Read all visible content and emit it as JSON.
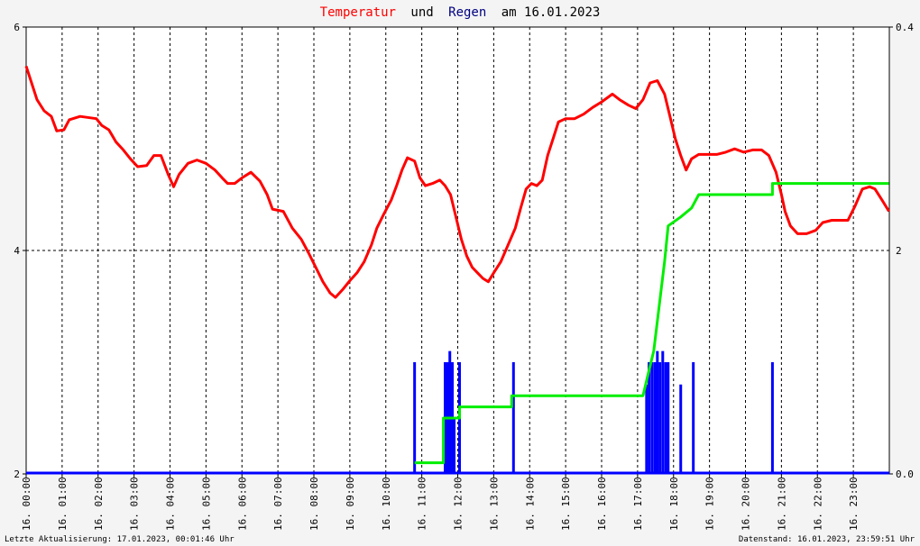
{
  "title": {
    "part1": "Temperatur",
    "part2": "und",
    "part3": "Regen",
    "part4": "am 16.01.2023"
  },
  "colors": {
    "temperature": "#ff0000",
    "rain": "#0000ff",
    "rain_total": "#00ee00",
    "background": "#f4f4f4",
    "plot_background": "#ffffff"
  },
  "footer": {
    "left": "Letzte Aktualisierung: 17.01.2023, 00:01:46 Uhr",
    "right": "Datenstand: 16.01.2023, 23:59:51 Uhr"
  },
  "chart_data": {
    "type": "line",
    "x_unit": "hour",
    "xlim": [
      0,
      24
    ],
    "grid": true,
    "x_ticks": [
      {
        "x": 0,
        "label": "16. 00:00"
      },
      {
        "x": 1,
        "label": "16. 01:00"
      },
      {
        "x": 2,
        "label": "16. 02:00"
      },
      {
        "x": 3,
        "label": "16. 03:00"
      },
      {
        "x": 4,
        "label": "16. 04:00"
      },
      {
        "x": 5,
        "label": "16. 05:00"
      },
      {
        "x": 6,
        "label": "16. 06:00"
      },
      {
        "x": 7,
        "label": "16. 07:00"
      },
      {
        "x": 8,
        "label": "16. 08:00"
      },
      {
        "x": 9,
        "label": "16. 09:00"
      },
      {
        "x": 10,
        "label": "16. 10:00"
      },
      {
        "x": 11,
        "label": "16. 11:00"
      },
      {
        "x": 12,
        "label": "16. 12:00"
      },
      {
        "x": 13,
        "label": "16. 13:00"
      },
      {
        "x": 14,
        "label": "16. 14:00"
      },
      {
        "x": 15,
        "label": "16. 15:00"
      },
      {
        "x": 16,
        "label": "16. 16:00"
      },
      {
        "x": 17,
        "label": "16. 17:00"
      },
      {
        "x": 18,
        "label": "16. 18:00"
      },
      {
        "x": 19,
        "label": "16. 19:00"
      },
      {
        "x": 20,
        "label": "16. 20:00"
      },
      {
        "x": 21,
        "label": "16. 21:00"
      },
      {
        "x": 22,
        "label": "16. 22:00"
      },
      {
        "x": 23,
        "label": "16. 23:00"
      }
    ],
    "y_left": {
      "ylim": [
        2,
        6
      ],
      "ticks": [
        {
          "v": 2,
          "label": "2"
        },
        {
          "v": 4,
          "label": "4"
        },
        {
          "v": 6,
          "label": "6"
        }
      ]
    },
    "y_right_outer": {
      "ylim": [
        0,
        0.4
      ],
      "ticks": [
        {
          "v": 0,
          "label": "0.0"
        },
        {
          "v": 0.4,
          "label": "0.4"
        }
      ]
    },
    "y_right_inner": {
      "ticks": [
        {
          "v": 4,
          "label": "2"
        }
      ]
    },
    "series": [
      {
        "id": "temperature",
        "axis": "left",
        "points": [
          [
            0.0,
            5.65
          ],
          [
            0.15,
            5.5
          ],
          [
            0.3,
            5.35
          ],
          [
            0.5,
            5.25
          ],
          [
            0.7,
            5.2
          ],
          [
            0.85,
            5.07
          ],
          [
            1.05,
            5.08
          ],
          [
            1.2,
            5.17
          ],
          [
            1.5,
            5.2
          ],
          [
            1.95,
            5.18
          ],
          [
            2.1,
            5.12
          ],
          [
            2.3,
            5.08
          ],
          [
            2.5,
            4.97
          ],
          [
            2.7,
            4.9
          ],
          [
            2.9,
            4.82
          ],
          [
            3.1,
            4.75
          ],
          [
            3.35,
            4.76
          ],
          [
            3.55,
            4.85
          ],
          [
            3.75,
            4.85
          ],
          [
            3.95,
            4.68
          ],
          [
            4.1,
            4.57
          ],
          [
            4.25,
            4.68
          ],
          [
            4.5,
            4.78
          ],
          [
            4.75,
            4.81
          ],
          [
            5.0,
            4.78
          ],
          [
            5.25,
            4.72
          ],
          [
            5.45,
            4.65
          ],
          [
            5.6,
            4.6
          ],
          [
            5.8,
            4.6
          ],
          [
            6.0,
            4.65
          ],
          [
            6.25,
            4.7
          ],
          [
            6.5,
            4.62
          ],
          [
            6.7,
            4.5
          ],
          [
            6.85,
            4.37
          ],
          [
            7.15,
            4.35
          ],
          [
            7.4,
            4.2
          ],
          [
            7.65,
            4.1
          ],
          [
            7.85,
            3.98
          ],
          [
            8.05,
            3.85
          ],
          [
            8.25,
            3.72
          ],
          [
            8.45,
            3.62
          ],
          [
            8.6,
            3.58
          ],
          [
            8.8,
            3.65
          ],
          [
            9.0,
            3.73
          ],
          [
            9.2,
            3.8
          ],
          [
            9.4,
            3.9
          ],
          [
            9.6,
            4.05
          ],
          [
            9.75,
            4.2
          ],
          [
            9.95,
            4.33
          ],
          [
            10.15,
            4.45
          ],
          [
            10.3,
            4.58
          ],
          [
            10.45,
            4.72
          ],
          [
            10.6,
            4.83
          ],
          [
            10.8,
            4.8
          ],
          [
            10.95,
            4.65
          ],
          [
            11.1,
            4.58
          ],
          [
            11.3,
            4.6
          ],
          [
            11.5,
            4.63
          ],
          [
            11.65,
            4.58
          ],
          [
            11.8,
            4.5
          ],
          [
            11.95,
            4.3
          ],
          [
            12.1,
            4.1
          ],
          [
            12.25,
            3.95
          ],
          [
            12.4,
            3.85
          ],
          [
            12.55,
            3.8
          ],
          [
            12.7,
            3.75
          ],
          [
            12.85,
            3.72
          ],
          [
            13.0,
            3.8
          ],
          [
            13.2,
            3.9
          ],
          [
            13.4,
            4.05
          ],
          [
            13.6,
            4.2
          ],
          [
            13.75,
            4.38
          ],
          [
            13.9,
            4.55
          ],
          [
            14.05,
            4.6
          ],
          [
            14.2,
            4.58
          ],
          [
            14.35,
            4.63
          ],
          [
            14.5,
            4.85
          ],
          [
            14.65,
            5.0
          ],
          [
            14.8,
            5.15
          ],
          [
            15.0,
            5.18
          ],
          [
            15.25,
            5.18
          ],
          [
            15.5,
            5.22
          ],
          [
            15.75,
            5.28
          ],
          [
            16.0,
            5.33
          ],
          [
            16.3,
            5.4
          ],
          [
            16.5,
            5.35
          ],
          [
            16.75,
            5.3
          ],
          [
            16.95,
            5.27
          ],
          [
            17.15,
            5.35
          ],
          [
            17.35,
            5.5
          ],
          [
            17.55,
            5.52
          ],
          [
            17.75,
            5.4
          ],
          [
            17.9,
            5.2
          ],
          [
            18.05,
            5.0
          ],
          [
            18.2,
            4.85
          ],
          [
            18.35,
            4.72
          ],
          [
            18.5,
            4.82
          ],
          [
            18.7,
            4.86
          ],
          [
            18.95,
            4.86
          ],
          [
            19.2,
            4.86
          ],
          [
            19.45,
            4.88
          ],
          [
            19.7,
            4.91
          ],
          [
            19.95,
            4.88
          ],
          [
            20.2,
            4.9
          ],
          [
            20.45,
            4.9
          ],
          [
            20.65,
            4.85
          ],
          [
            20.85,
            4.7
          ],
          [
            21.0,
            4.5
          ],
          [
            21.1,
            4.35
          ],
          [
            21.25,
            4.22
          ],
          [
            21.45,
            4.15
          ],
          [
            21.7,
            4.15
          ],
          [
            21.95,
            4.18
          ],
          [
            22.15,
            4.25
          ],
          [
            22.4,
            4.27
          ],
          [
            22.65,
            4.27
          ],
          [
            22.85,
            4.27
          ],
          [
            23.05,
            4.4
          ],
          [
            23.25,
            4.55
          ],
          [
            23.45,
            4.57
          ],
          [
            23.6,
            4.55
          ],
          [
            23.8,
            4.45
          ],
          [
            23.99,
            4.35
          ]
        ]
      },
      {
        "id": "rain_total",
        "axis": "left",
        "points": [
          [
            10.8,
            2.1
          ],
          [
            11.6,
            2.1
          ],
          [
            11.6,
            2.5
          ],
          [
            12.05,
            2.5
          ],
          [
            12.05,
            2.6
          ],
          [
            13.5,
            2.6
          ],
          [
            13.5,
            2.7
          ],
          [
            17.15,
            2.7
          ],
          [
            17.3,
            2.9
          ],
          [
            17.45,
            3.1
          ],
          [
            17.6,
            3.5
          ],
          [
            17.75,
            3.9
          ],
          [
            17.85,
            4.22
          ],
          [
            18.2,
            4.3
          ],
          [
            18.5,
            4.38
          ],
          [
            18.7,
            4.5
          ],
          [
            20.75,
            4.5
          ],
          [
            20.75,
            4.6
          ],
          [
            23.99,
            4.6
          ]
        ]
      },
      {
        "id": "rain",
        "axis": "right_outer",
        "type": "bar",
        "bars": [
          [
            10.8,
            0.1
          ],
          [
            11.65,
            0.1
          ],
          [
            11.72,
            0.1
          ],
          [
            11.78,
            0.11
          ],
          [
            11.85,
            0.1
          ],
          [
            11.9,
            0.05
          ],
          [
            12.05,
            0.1
          ],
          [
            13.55,
            0.1
          ],
          [
            17.25,
            0.08
          ],
          [
            17.32,
            0.1
          ],
          [
            17.4,
            0.1
          ],
          [
            17.48,
            0.1
          ],
          [
            17.55,
            0.11
          ],
          [
            17.62,
            0.1
          ],
          [
            17.7,
            0.11
          ],
          [
            17.78,
            0.1
          ],
          [
            17.85,
            0.1
          ],
          [
            18.2,
            0.08
          ],
          [
            18.55,
            0.1
          ],
          [
            20.75,
            0.1
          ]
        ]
      }
    ]
  }
}
